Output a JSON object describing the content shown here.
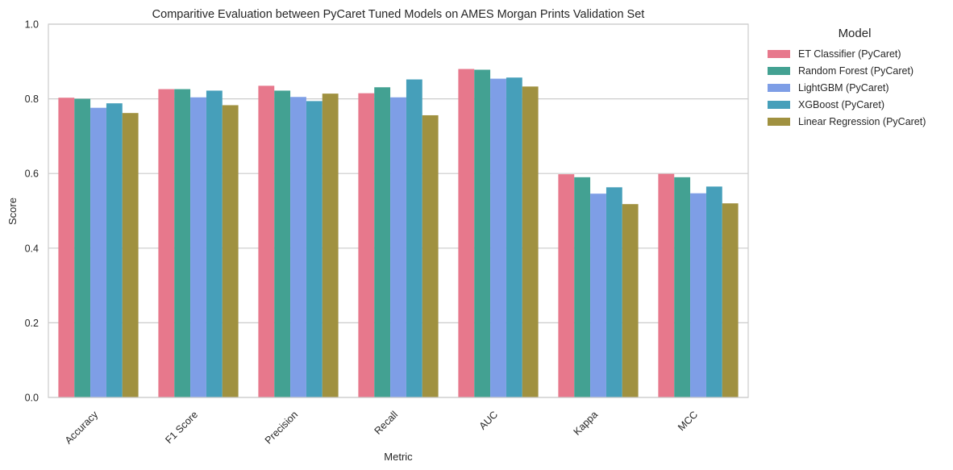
{
  "chart_data": {
    "type": "bar",
    "title": "Comparitive Evaluation between PyCaret Tuned Models on AMES Morgan Prints Validation Set",
    "xlabel": "Metric",
    "ylabel": "Score",
    "ylim": [
      0,
      1.0
    ],
    "yticks": [
      "0.0",
      "0.2",
      "0.4",
      "0.6",
      "0.8",
      "1.0"
    ],
    "grid": true,
    "legend_title": "Model",
    "legend_position": "outside-right",
    "categories": [
      "Accuracy",
      "F1 Score",
      "Precision",
      "Recall",
      "AUC",
      "Kappa",
      "MCC"
    ],
    "series": [
      {
        "name": "ET Classifier (PyCaret)",
        "color": "#e7788c",
        "values": [
          0.803,
          0.826,
          0.835,
          0.815,
          0.88,
          0.598,
          0.599
        ]
      },
      {
        "name": "Random Forest (PyCaret)",
        "color": "#43a192",
        "values": [
          0.8,
          0.826,
          0.822,
          0.831,
          0.878,
          0.59,
          0.59
        ]
      },
      {
        "name": "LightGBM (PyCaret)",
        "color": "#7e9ee6",
        "values": [
          0.776,
          0.804,
          0.805,
          0.804,
          0.854,
          0.546,
          0.547
        ]
      },
      {
        "name": "XGBoost (PyCaret)",
        "color": "#469fba",
        "values": [
          0.788,
          0.822,
          0.794,
          0.852,
          0.857,
          0.563,
          0.565
        ]
      },
      {
        "name": "Linear Regression (PyCaret)",
        "color": "#a09140",
        "values": [
          0.762,
          0.783,
          0.814,
          0.756,
          0.833,
          0.518,
          0.52
        ]
      }
    ]
  }
}
